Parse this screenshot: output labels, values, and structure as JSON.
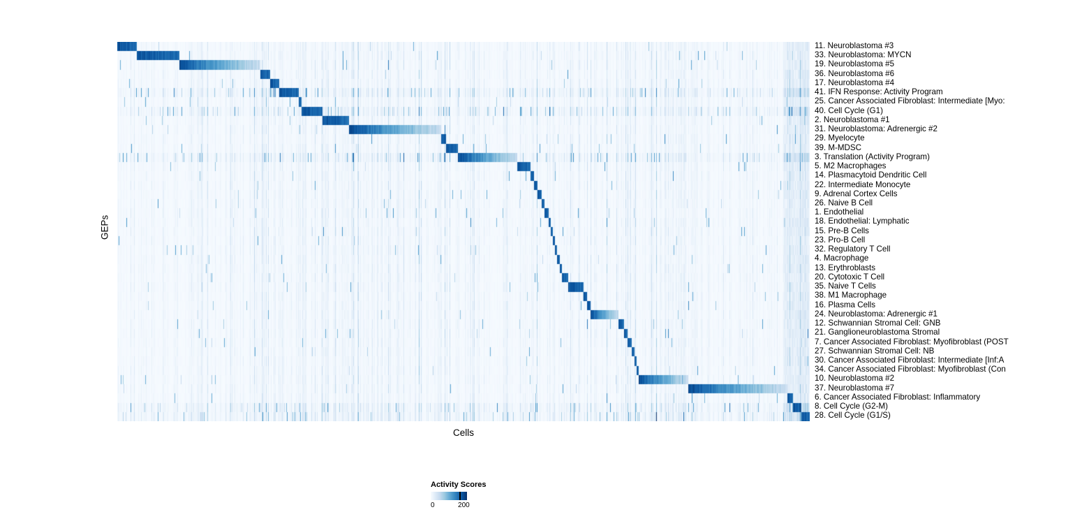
{
  "chart_data": {
    "type": "heatmap",
    "xlabel": "Cells",
    "ylabel": "GEPs",
    "legend": {
      "title": "Activity Scores",
      "min_label": "0",
      "max_label": "200",
      "min": 0,
      "max": 200,
      "tick_fraction": 0.79
    },
    "colormap": [
      "#f7fbff",
      "#deebf7",
      "#c6dbef",
      "#9ecae1",
      "#6baed6",
      "#4292c6",
      "#2171b5",
      "#08519c",
      "#08306b"
    ],
    "value_ceiling": 240,
    "noise_seed": 1337,
    "n_cols": 992,
    "n_rows": 41,
    "rows": [
      {
        "label": "11. Neuroblastoma #3",
        "start": 0.0,
        "end": 0.028,
        "fade": 0,
        "diffuse": 0
      },
      {
        "label": "33. Neuroblastoma: MYCN",
        "start": 0.028,
        "end": 0.089,
        "fade": 0,
        "diffuse": 0
      },
      {
        "label": "19. Neuroblastoma #5",
        "start": 0.089,
        "end": 0.206,
        "fade": 1,
        "diffuse": 0
      },
      {
        "label": "36. Neuroblastoma #6",
        "start": 0.206,
        "end": 0.22,
        "fade": 0,
        "diffuse": 0
      },
      {
        "label": "17. Neuroblastoma #4",
        "start": 0.22,
        "end": 0.234,
        "fade": 0,
        "diffuse": 0
      },
      {
        "label": "41. IFN Response: Activity Program",
        "start": 0.234,
        "end": 0.262,
        "fade": 0,
        "diffuse": 1
      },
      {
        "label": "25. Cancer Associated Fibroblast: Intermediate [Myo:",
        "start": 0.262,
        "end": 0.266,
        "fade": 0,
        "diffuse": 0
      },
      {
        "label": "40. Cell Cycle (G1)",
        "start": 0.266,
        "end": 0.296,
        "fade": 0,
        "diffuse": 1
      },
      {
        "label": "2. Neuroblastoma #1",
        "start": 0.296,
        "end": 0.335,
        "fade": 0,
        "diffuse": 0
      },
      {
        "label": "31. Neuroblastoma: Adrenergic #2",
        "start": 0.335,
        "end": 0.468,
        "fade": 1,
        "diffuse": 0
      },
      {
        "label": "29. Myelocyte",
        "start": 0.468,
        "end": 0.475,
        "fade": 0,
        "diffuse": 0
      },
      {
        "label": "39. M-MDSC",
        "start": 0.475,
        "end": 0.492,
        "fade": 0,
        "diffuse": 0
      },
      {
        "label": "3. Translation (Activity Program)",
        "start": 0.492,
        "end": 0.578,
        "fade": 1,
        "diffuse": 1
      },
      {
        "label": "5. M2 Macrophages",
        "start": 0.578,
        "end": 0.597,
        "fade": 0,
        "diffuse": 0
      },
      {
        "label": "14. Plasmacytoid Dendritic Cell",
        "start": 0.597,
        "end": 0.602,
        "fade": 0,
        "diffuse": 0
      },
      {
        "label": "22. Intermediate Monocyte",
        "start": 0.602,
        "end": 0.607,
        "fade": 0,
        "diffuse": 0
      },
      {
        "label": "9. Adrenal Cortex Cells",
        "start": 0.607,
        "end": 0.613,
        "fade": 0,
        "diffuse": 0
      },
      {
        "label": "26. Naive B Cell",
        "start": 0.613,
        "end": 0.617,
        "fade": 0,
        "diffuse": 0
      },
      {
        "label": "1. Endothelial",
        "start": 0.617,
        "end": 0.623,
        "fade": 0,
        "diffuse": 0
      },
      {
        "label": "18. Endothelial: Lymphatic",
        "start": 0.623,
        "end": 0.626,
        "fade": 0,
        "diffuse": 0
      },
      {
        "label": "15. Pre-B Cells",
        "start": 0.626,
        "end": 0.629,
        "fade": 0,
        "diffuse": 0
      },
      {
        "label": "23. Pro-B Cell",
        "start": 0.629,
        "end": 0.632,
        "fade": 0,
        "diffuse": 0
      },
      {
        "label": "32. Regulatory T Cell",
        "start": 0.632,
        "end": 0.635,
        "fade": 0,
        "diffuse": 0
      },
      {
        "label": "4. Macrophage",
        "start": 0.635,
        "end": 0.639,
        "fade": 0,
        "diffuse": 0
      },
      {
        "label": "13. Erythroblasts",
        "start": 0.639,
        "end": 0.642,
        "fade": 0,
        "diffuse": 0
      },
      {
        "label": "20. Cytotoxic T Cell",
        "start": 0.642,
        "end": 0.651,
        "fade": 0,
        "diffuse": 0
      },
      {
        "label": "35. Naive T Cells",
        "start": 0.651,
        "end": 0.674,
        "fade": 0,
        "diffuse": 0
      },
      {
        "label": "38. M1 Macrophage",
        "start": 0.674,
        "end": 0.679,
        "fade": 0,
        "diffuse": 0
      },
      {
        "label": "16. Plasma Cells",
        "start": 0.679,
        "end": 0.684,
        "fade": 0,
        "diffuse": 0
      },
      {
        "label": "24. Neuroblastoma: Adrenergic #1",
        "start": 0.684,
        "end": 0.724,
        "fade": 1,
        "diffuse": 0
      },
      {
        "label": "12. Schwannian Stromal Cell: GNB",
        "start": 0.724,
        "end": 0.732,
        "fade": 0,
        "diffuse": 0
      },
      {
        "label": "21. Ganglioneuroblastoma Stromal",
        "start": 0.732,
        "end": 0.737,
        "fade": 0,
        "diffuse": 0
      },
      {
        "label": "7. Cancer Associated Fibroblast: Myofibroblast (POST",
        "start": 0.737,
        "end": 0.743,
        "fade": 0,
        "diffuse": 0
      },
      {
        "label": "27. Schwannian Stromal Cell: NB",
        "start": 0.743,
        "end": 0.747,
        "fade": 0,
        "diffuse": 0
      },
      {
        "label": "30. Cancer Associated Fibroblast: Intermediate [Inf:A",
        "start": 0.747,
        "end": 0.75,
        "fade": 0,
        "diffuse": 0
      },
      {
        "label": "34. Cancer Associated Fibroblast: Myofibroblast (Con",
        "start": 0.75,
        "end": 0.753,
        "fade": 0,
        "diffuse": 0
      },
      {
        "label": "10. Neuroblastoma #2",
        "start": 0.753,
        "end": 0.825,
        "fade": 1,
        "diffuse": 0
      },
      {
        "label": "37. Neuroblastoma #7",
        "start": 0.825,
        "end": 0.968,
        "fade": 1,
        "diffuse": 0
      },
      {
        "label": "6. Cancer Associated Fibroblast: Inflammatory",
        "start": 0.968,
        "end": 0.976,
        "fade": 0,
        "diffuse": 0
      },
      {
        "label": "8. Cell Cycle (G2-M)",
        "start": 0.976,
        "end": 0.988,
        "fade": 0,
        "diffuse": 1
      },
      {
        "label": "28. Cell Cycle (G1/S)",
        "start": 0.988,
        "end": 1.0,
        "fade": 0,
        "diffuse": 1
      }
    ]
  }
}
